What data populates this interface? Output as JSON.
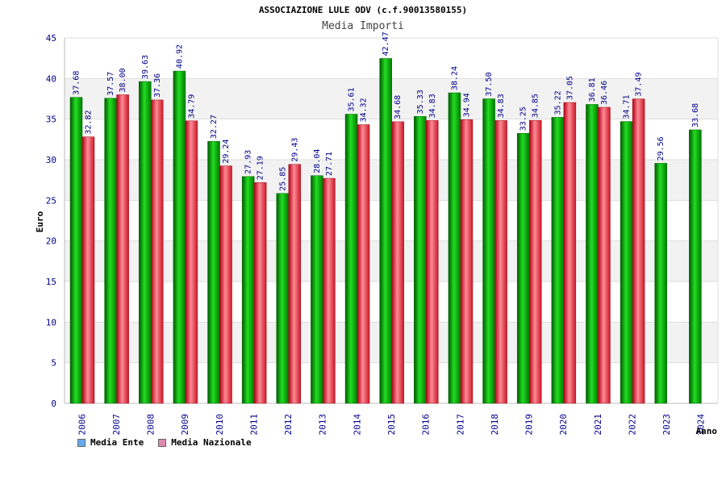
{
  "chart_data": {
    "type": "bar",
    "title": "ASSOCIAZIONE LULE ODV (c.f.90013580155)",
    "subtitle": "Media Importi",
    "xlabel": "Anno",
    "ylabel": "Euro",
    "ylim": [
      0,
      45
    ],
    "yticks": [
      "0",
      "5",
      "10",
      "15",
      "20",
      "25",
      "30",
      "35",
      "40",
      "45"
    ],
    "grid": true,
    "categories": [
      "2006",
      "2007",
      "2008",
      "2009",
      "2010",
      "2011",
      "2012",
      "2013",
      "2014",
      "2015",
      "2016",
      "2017",
      "2018",
      "2019",
      "2020",
      "2021",
      "2022",
      "2023",
      "2024"
    ],
    "series": [
      {
        "name": "Media Ente",
        "color": "#00b000",
        "legend_color": "#66aaee",
        "values": [
          37.68,
          37.57,
          39.63,
          40.92,
          32.27,
          27.93,
          25.85,
          28.04,
          35.61,
          42.47,
          35.33,
          38.24,
          37.5,
          33.25,
          35.22,
          36.81,
          34.71,
          29.56,
          33.68
        ],
        "labels": [
          "37.68",
          "37.57",
          "39.63",
          "40.92",
          "32.27",
          "27.93",
          "25.85",
          "28.04",
          "35.61",
          "42.47",
          "35.33",
          "38.24",
          "37.50",
          "33.25",
          "35.22",
          "36.81",
          "34.71",
          "29.56",
          "33.68"
        ]
      },
      {
        "name": "Media Nazionale",
        "color": "#e83040",
        "legend_color": "#e08ab0",
        "values": [
          32.82,
          38.0,
          37.36,
          34.79,
          29.24,
          27.19,
          29.43,
          27.71,
          34.32,
          34.68,
          34.83,
          34.94,
          34.83,
          34.85,
          37.05,
          36.46,
          37.49,
          null,
          null
        ],
        "labels": [
          "32.82",
          "38.00",
          "37.36",
          "34.79",
          "29.24",
          "27.19",
          "29.43",
          "27.71",
          "34.32",
          "34.68",
          "34.83",
          "34.94",
          "34.83",
          "34.85",
          "37.05",
          "36.46",
          "37.49",
          null,
          null
        ]
      }
    ],
    "legend_position": "bottom-left"
  }
}
